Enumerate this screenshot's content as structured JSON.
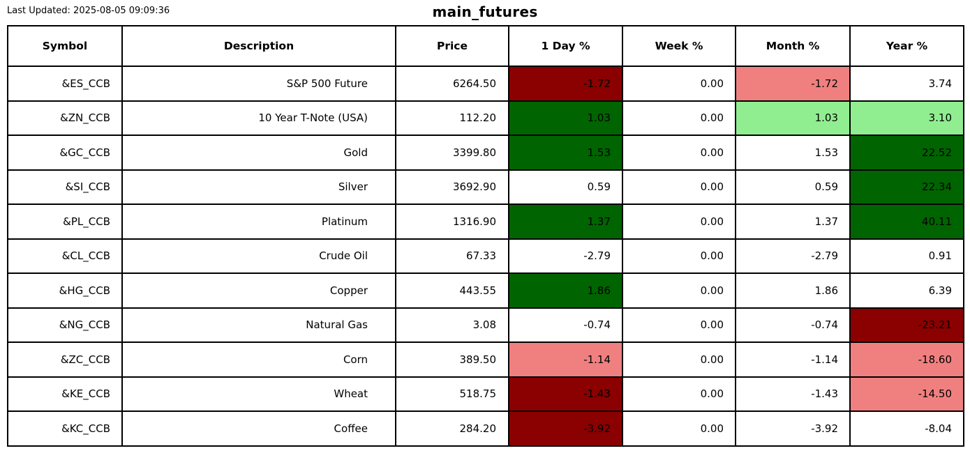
{
  "header": {
    "last_updated": "Last Updated: 2025-08-05 09:09:36"
  },
  "chart_data": {
    "type": "table",
    "title": "main_futures",
    "columns": [
      "Symbol",
      "Description",
      "Price",
      "1 Day %",
      "Week %",
      "Month %",
      "Year %"
    ],
    "cell_colors": {
      "strong_down": "#8B0000",
      "down": "#F08080",
      "strong_up": "#006400",
      "up": "#90EE90",
      "neutral": "#FFFFFF"
    },
    "rows": [
      {
        "symbol": "&ES_CCB",
        "description": "S&P 500 Future",
        "price": "6264.50",
        "day": "-1.72",
        "week": "0.00",
        "month": "-1.72",
        "year": "3.74",
        "day_bg": "strong_down",
        "week_bg": "neutral",
        "month_bg": "down",
        "year_bg": "neutral"
      },
      {
        "symbol": "&ZN_CCB",
        "description": "10 Year T-Note (USA)",
        "price": "112.20",
        "day": "1.03",
        "week": "0.00",
        "month": "1.03",
        "year": "3.10",
        "day_bg": "strong_up",
        "week_bg": "neutral",
        "month_bg": "up",
        "year_bg": "up"
      },
      {
        "symbol": "&GC_CCB",
        "description": "Gold",
        "price": "3399.80",
        "day": "1.53",
        "week": "0.00",
        "month": "1.53",
        "year": "22.52",
        "day_bg": "strong_up",
        "week_bg": "neutral",
        "month_bg": "neutral",
        "year_bg": "strong_up"
      },
      {
        "symbol": "&SI_CCB",
        "description": "Silver",
        "price": "3692.90",
        "day": "0.59",
        "week": "0.00",
        "month": "0.59",
        "year": "22.34",
        "day_bg": "neutral",
        "week_bg": "neutral",
        "month_bg": "neutral",
        "year_bg": "strong_up"
      },
      {
        "symbol": "&PL_CCB",
        "description": "Platinum",
        "price": "1316.90",
        "day": "1.37",
        "week": "0.00",
        "month": "1.37",
        "year": "40.11",
        "day_bg": "strong_up",
        "week_bg": "neutral",
        "month_bg": "neutral",
        "year_bg": "strong_up"
      },
      {
        "symbol": "&CL_CCB",
        "description": "Crude Oil",
        "price": "67.33",
        "day": "-2.79",
        "week": "0.00",
        "month": "-2.79",
        "year": "0.91",
        "day_bg": "neutral",
        "week_bg": "neutral",
        "month_bg": "neutral",
        "year_bg": "neutral"
      },
      {
        "symbol": "&HG_CCB",
        "description": "Copper",
        "price": "443.55",
        "day": "1.86",
        "week": "0.00",
        "month": "1.86",
        "year": "6.39",
        "day_bg": "strong_up",
        "week_bg": "neutral",
        "month_bg": "neutral",
        "year_bg": "neutral"
      },
      {
        "symbol": "&NG_CCB",
        "description": "Natural Gas",
        "price": "3.08",
        "day": "-0.74",
        "week": "0.00",
        "month": "-0.74",
        "year": "-23.21",
        "day_bg": "neutral",
        "week_bg": "neutral",
        "month_bg": "neutral",
        "year_bg": "strong_down"
      },
      {
        "symbol": "&ZC_CCB",
        "description": "Corn",
        "price": "389.50",
        "day": "-1.14",
        "week": "0.00",
        "month": "-1.14",
        "year": "-18.60",
        "day_bg": "down",
        "week_bg": "neutral",
        "month_bg": "neutral",
        "year_bg": "down"
      },
      {
        "symbol": "&KE_CCB",
        "description": "Wheat",
        "price": "518.75",
        "day": "-1.43",
        "week": "0.00",
        "month": "-1.43",
        "year": "-14.50",
        "day_bg": "strong_down",
        "week_bg": "neutral",
        "month_bg": "neutral",
        "year_bg": "down"
      },
      {
        "symbol": "&KC_CCB",
        "description": "Coffee",
        "price": "284.20",
        "day": "-3.92",
        "week": "0.00",
        "month": "-3.92",
        "year": "-8.04",
        "day_bg": "strong_down",
        "week_bg": "neutral",
        "month_bg": "neutral",
        "year_bg": "neutral"
      }
    ]
  }
}
